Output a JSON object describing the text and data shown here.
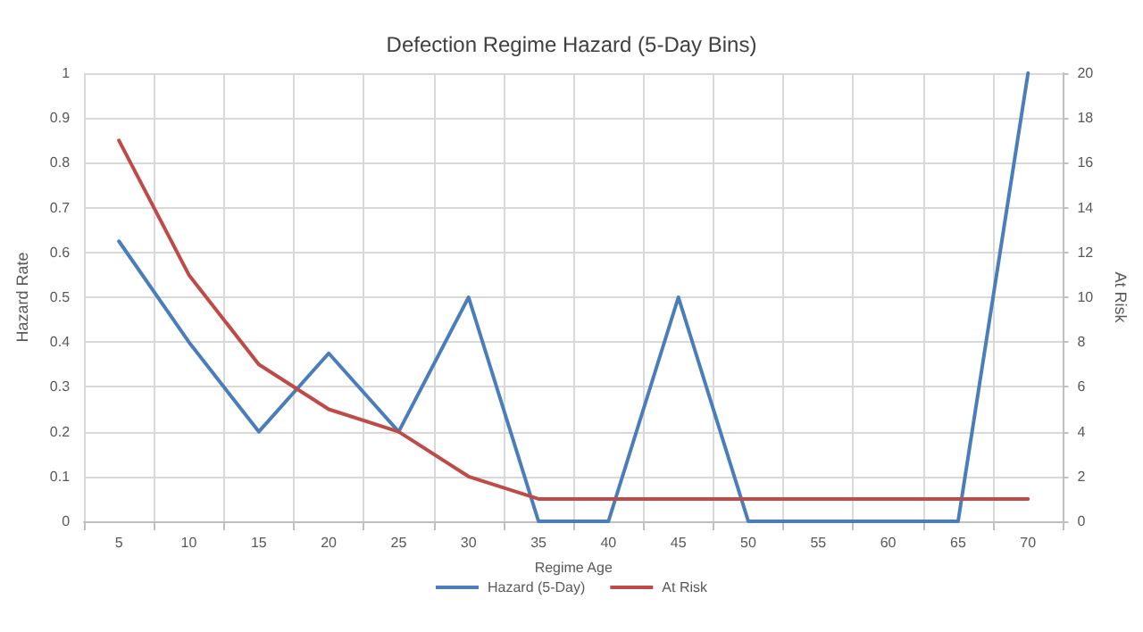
{
  "chart_data": {
    "type": "line",
    "title": "Defection Regime Hazard (5-Day Bins)",
    "xlabel": "Regime Age",
    "ylabel": "Hazard Rate",
    "y2label": "At Risk",
    "categories": [
      "5",
      "10",
      "15",
      "20",
      "25",
      "30",
      "35",
      "40",
      "45",
      "50",
      "55",
      "60",
      "65",
      "70"
    ],
    "series": [
      {
        "name": "Hazard (5-Day)",
        "color": "#4a7ebb",
        "values": [
          0.625,
          0.4,
          0.2,
          0.375,
          0.2,
          0.5,
          0,
          0,
          0.5,
          0,
          0,
          0,
          0,
          1
        ]
      },
      {
        "name": "At Risk",
        "color": "#be4b48",
        "axis": "y2",
        "values": [
          17,
          11,
          7,
          5,
          4,
          2,
          1,
          1,
          1,
          1,
          1,
          1,
          1,
          1
        ]
      }
    ],
    "ylim": [
      0,
      1
    ],
    "yticks": [
      0,
      0.1,
      0.2,
      0.3,
      0.4,
      0.5,
      0.6,
      0.7,
      0.8,
      0.9,
      1
    ],
    "y2lim": [
      0,
      20
    ],
    "y2ticks": [
      0,
      2,
      4,
      6,
      8,
      10,
      12,
      14,
      16,
      18,
      20
    ],
    "grid": true,
    "legend": "bottom",
    "marker": "none",
    "line_style": "solid"
  }
}
